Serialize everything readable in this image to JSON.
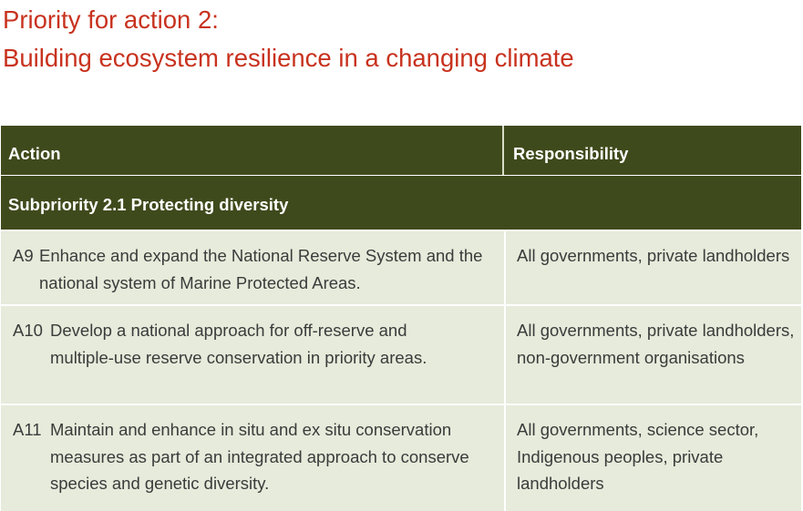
{
  "heading": {
    "line1": "Priority for action 2:",
    "line2": "Building ecosystem resilience in a changing climate"
  },
  "table": {
    "columns": [
      "Action",
      "Responsibility"
    ],
    "subpriority": "Subpriority 2.1 Protecting diversity",
    "rows": [
      {
        "code": "A9",
        "action": "Enhance and expand the National Reserve System and the national system of Marine Protected Areas.",
        "responsibility": "All governments, private landholders"
      },
      {
        "code": "A10",
        "action": "Develop a national approach for off-reserve and multiple-use reserve conservation in priority areas.",
        "responsibility": "All governments, private landholders, non-government organisations"
      },
      {
        "code": "A11",
        "action": "Maintain and enhance in situ and ex situ conservation measures as part of an integrated approach to conserve species and genetic diversity.",
        "responsibility": "All governments, science sector, Indigenous peoples, private landholders"
      }
    ]
  }
}
